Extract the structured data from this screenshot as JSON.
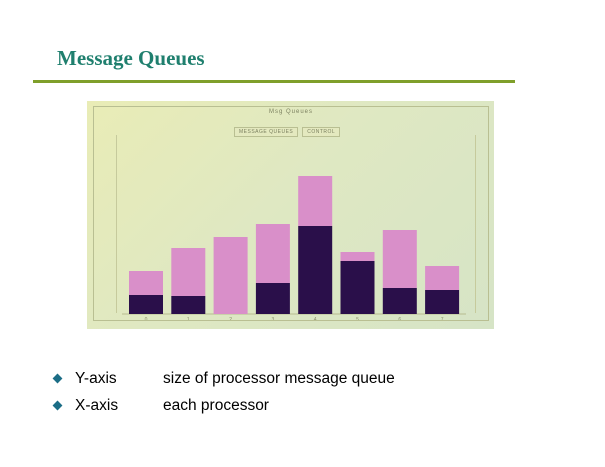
{
  "slide": {
    "title": "Message Queues"
  },
  "window": {
    "title": "Msg Queues",
    "tabs": [
      {
        "label": "MESSAGE QUEUES"
      },
      {
        "label": "CONTROL"
      }
    ]
  },
  "chart_data": {
    "type": "bar",
    "stacked": true,
    "categories": [
      "0",
      "1",
      "2",
      "3",
      "4",
      "5",
      "6",
      "7"
    ],
    "series": [
      {
        "values": [
          19,
          18,
          0,
          31,
          88,
          53,
          26,
          24
        ],
        "color": "#2a0f4a"
      },
      {
        "values": [
          24,
          48,
          77,
          59,
          50,
          9,
          58,
          24
        ],
        "color": "#d98fc9"
      }
    ],
    "ylim": [
      0,
      145
    ],
    "grid": false,
    "legend": "none"
  },
  "bullets": [
    {
      "term": "Y-axis",
      "desc": "size of processor message queue"
    },
    {
      "term": "X-axis",
      "desc": "each processor"
    }
  ],
  "colors": {
    "title": "#1f7f6e",
    "rule": "#7f9f2a",
    "bullet": "#1b6d86"
  }
}
